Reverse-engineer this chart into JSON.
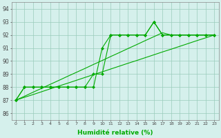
{
  "xlabel": "Humidité relative (%)",
  "background_color": "#d5f0ec",
  "grid_color": "#99ccbb",
  "line_color": "#00aa00",
  "xlim": [
    -0.5,
    23.5
  ],
  "ylim": [
    85.5,
    94.5
  ],
  "yticks": [
    86,
    87,
    88,
    89,
    90,
    91,
    92,
    93,
    94
  ],
  "xticks": [
    0,
    1,
    2,
    3,
    4,
    5,
    6,
    7,
    8,
    9,
    10,
    11,
    12,
    13,
    14,
    15,
    16,
    17,
    18,
    19,
    20,
    21,
    22,
    23
  ],
  "series_markers": [
    [
      87,
      88,
      88,
      88,
      88,
      88,
      88,
      88,
      88,
      88,
      91,
      92,
      92,
      92,
      92,
      92,
      93,
      92,
      92,
      92,
      92,
      92,
      92,
      92
    ],
    [
      87,
      88,
      88,
      88,
      88,
      88,
      88,
      88,
      88,
      89,
      89,
      92,
      92,
      92,
      92,
      92,
      93,
      92,
      92,
      92,
      92,
      92,
      92,
      92
    ]
  ],
  "series_lines": [
    [
      87.0,
      87.22,
      87.43,
      87.65,
      87.87,
      88.09,
      88.3,
      88.52,
      88.74,
      88.96,
      89.17,
      89.39,
      89.61,
      89.83,
      90.04,
      90.26,
      90.48,
      90.7,
      90.91,
      91.13,
      91.35,
      91.57,
      91.78,
      92.0
    ],
    [
      87.0,
      87.3,
      87.61,
      87.91,
      88.22,
      88.52,
      88.83,
      89.13,
      89.43,
      89.74,
      90.04,
      90.35,
      90.65,
      90.96,
      91.26,
      91.57,
      91.87,
      92.17,
      92.0,
      92.0,
      92.0,
      92.0,
      92.0,
      92.0
    ]
  ]
}
